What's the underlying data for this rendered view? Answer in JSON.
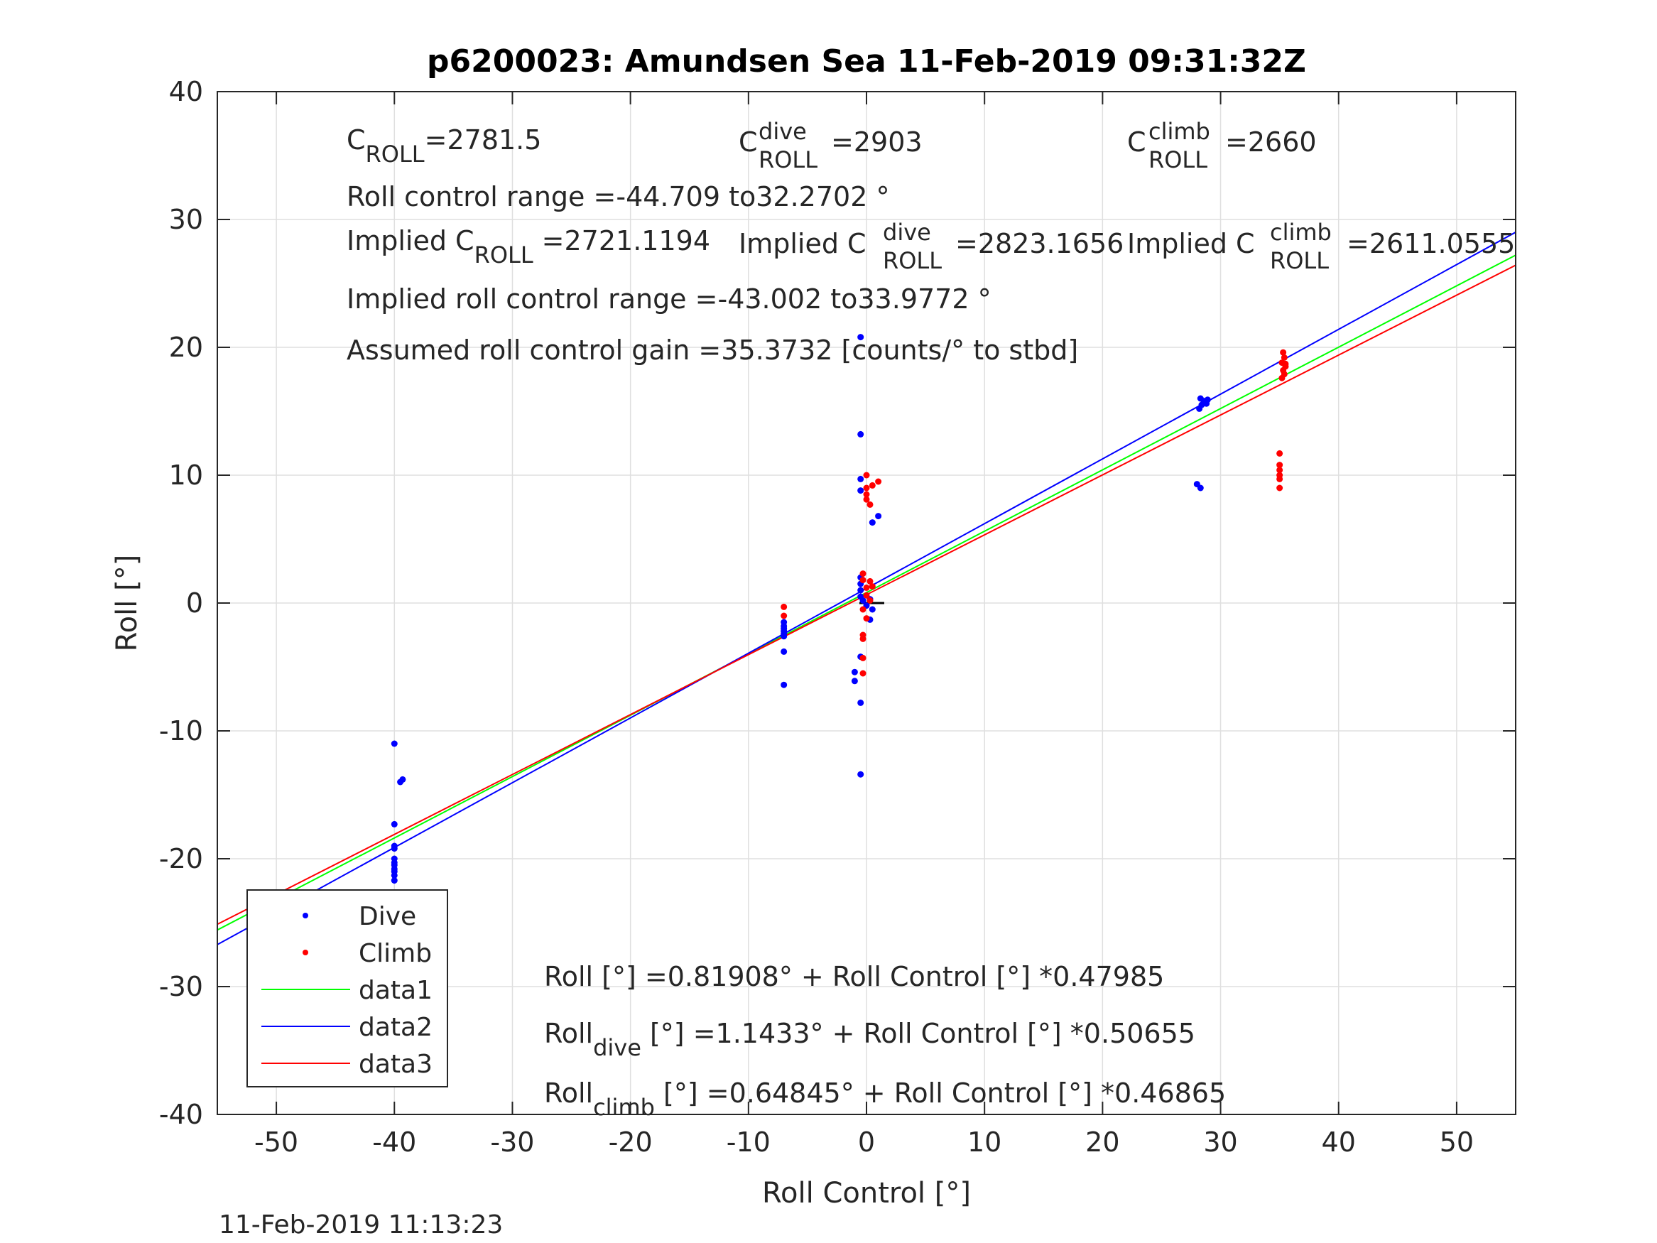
{
  "chart_data": {
    "type": "scatter",
    "title": "p6200023: Amundsen Sea 11-Feb-2019 09:31:32Z",
    "xlabel": "Roll Control [°]",
    "ylabel": "Roll [°]",
    "xlim": [
      -55,
      55
    ],
    "ylim": [
      -40,
      40
    ],
    "xticks": [
      -50,
      -40,
      -30,
      -20,
      -10,
      0,
      10,
      20,
      30,
      40,
      50
    ],
    "yticks": [
      -40,
      -30,
      -20,
      -10,
      0,
      10,
      20,
      30,
      40
    ],
    "grid": true,
    "timestamp": "11-Feb-2019 11:13:23",
    "legend": {
      "placement": "bottom-left",
      "entries": [
        "Dive",
        "Climb",
        "data1",
        "data2",
        "data3"
      ]
    },
    "colors": {
      "dive": "#0000ff",
      "climb": "#ff0000",
      "data1": "#00ff00",
      "data2": "#0000ff",
      "data3": "#ff0000"
    },
    "series": [
      {
        "name": "Dive",
        "kind": "points",
        "points": [
          [
            -40,
            -11
          ],
          [
            -39.5,
            -14
          ],
          [
            -39.3,
            -13.8
          ],
          [
            -40,
            -17.3
          ],
          [
            -40,
            -19
          ],
          [
            -40,
            -19.2
          ],
          [
            -40,
            -20
          ],
          [
            -40,
            -20.3
          ],
          [
            -40,
            -20.5
          ],
          [
            -40,
            -20.8
          ],
          [
            -40,
            -21
          ],
          [
            -40,
            -21.3
          ],
          [
            -40,
            -21.7
          ],
          [
            -7,
            -1.8
          ],
          [
            -7,
            -2.0
          ],
          [
            -7,
            -2.2
          ],
          [
            -7,
            -2.4
          ],
          [
            -7,
            -2.6
          ],
          [
            -7,
            -1.5
          ],
          [
            -7,
            -3.8
          ],
          [
            -7,
            -6.4
          ],
          [
            -0.5,
            20.8
          ],
          [
            -0.5,
            13.2
          ],
          [
            -0.5,
            9.7
          ],
          [
            -0.5,
            8.8
          ],
          [
            0.5,
            6.3
          ],
          [
            1,
            6.8
          ],
          [
            -0.5,
            2.0
          ],
          [
            -0.5,
            1.5
          ],
          [
            -0.5,
            1.0
          ],
          [
            -0.5,
            0.5
          ],
          [
            -0.3,
            0.2
          ],
          [
            0,
            -0.2
          ],
          [
            0.3,
            0.3
          ],
          [
            0.5,
            -0.5
          ],
          [
            0.3,
            -1.3
          ],
          [
            -0.5,
            -4.2
          ],
          [
            -1,
            -5.4
          ],
          [
            -1,
            -6.1
          ],
          [
            -0.5,
            -7.8
          ],
          [
            -0.5,
            -13.4
          ],
          [
            28.2,
            15.2
          ],
          [
            28.4,
            15.5
          ],
          [
            28.6,
            15.8
          ],
          [
            28.8,
            15.6
          ],
          [
            28.3,
            16.0
          ],
          [
            28.9,
            15.9
          ],
          [
            28,
            9.3
          ],
          [
            28.3,
            9.0
          ]
        ]
      },
      {
        "name": "Climb",
        "kind": "points",
        "points": [
          [
            -7,
            -0.3
          ],
          [
            -7,
            -1.0
          ],
          [
            0,
            10.0
          ],
          [
            0.5,
            9.2
          ],
          [
            1,
            9.5
          ],
          [
            0,
            9.0
          ],
          [
            0,
            8.5
          ],
          [
            0,
            8.1
          ],
          [
            0.3,
            7.7
          ],
          [
            -0.3,
            2.3
          ],
          [
            -0.3,
            1.8
          ],
          [
            0,
            1.2
          ],
          [
            0.3,
            1.7
          ],
          [
            0.5,
            1.3
          ],
          [
            0,
            0.6
          ],
          [
            0.3,
            0.2
          ],
          [
            -0.3,
            -0.5
          ],
          [
            0,
            -1.2
          ],
          [
            -0.3,
            -2.5
          ],
          [
            -0.3,
            -2.8
          ],
          [
            -0.3,
            -4.3
          ],
          [
            -0.3,
            -5.5
          ],
          [
            35.3,
            19.6
          ],
          [
            35.4,
            19.2
          ],
          [
            35.2,
            18.8
          ],
          [
            35.5,
            18.5
          ],
          [
            35.3,
            18.2
          ],
          [
            35.4,
            17.9
          ],
          [
            35.2,
            17.6
          ],
          [
            35.5,
            18.7
          ],
          [
            35,
            11.7
          ],
          [
            35,
            10.8
          ],
          [
            35,
            10.4
          ],
          [
            35,
            10.0
          ],
          [
            35,
            9.7
          ],
          [
            35,
            9.0
          ]
        ]
      },
      {
        "name": "data1",
        "kind": "line",
        "intercept": 0.81908,
        "slope": 0.47985
      },
      {
        "name": "data2",
        "kind": "line",
        "intercept": 1.1433,
        "slope": 0.50655
      },
      {
        "name": "data3",
        "kind": "line",
        "intercept": 0.64845,
        "slope": 0.46865
      }
    ],
    "annotations": {
      "c_roll": {
        "main": "C",
        "sub": "ROLL",
        "value": "=2781.5"
      },
      "c_roll_dive": {
        "main": "C",
        "sup": "dive",
        "sub": "ROLL",
        "value": "=2903"
      },
      "c_roll_climb": {
        "main": "C",
        "sup": "climb",
        "sub": "ROLL",
        "value": "=2660"
      },
      "roll_control_range": "Roll control range =-44.709 to32.2702 °",
      "implied_c_roll": {
        "main": "Implied C",
        "sub": "ROLL",
        "value": "=2721.1194"
      },
      "implied_c_roll_dive": {
        "main": "Implied C",
        "sup": "dive",
        "sub": "ROLL",
        "value": "=2823.1656"
      },
      "implied_c_roll_climb": {
        "main": "Implied C",
        "sup": "climb",
        "sub": "ROLL",
        "value": "=2611.0555"
      },
      "implied_range": "Implied roll control range =-43.002 to33.9772 °",
      "gain": "Assumed roll control gain =35.3732 [counts/° to stbd]",
      "eq_all": "Roll [°] =0.81908° + Roll Control [°] *0.47985",
      "eq_dive": {
        "main": "Roll",
        "sub": "dive",
        "rest": " [°] =1.1433° + Roll Control [°] *0.50655"
      },
      "eq_climb": {
        "main": "Roll",
        "sub": "climb",
        "rest": " [°] =0.64845° + Roll Control [°] *0.46865"
      }
    }
  }
}
